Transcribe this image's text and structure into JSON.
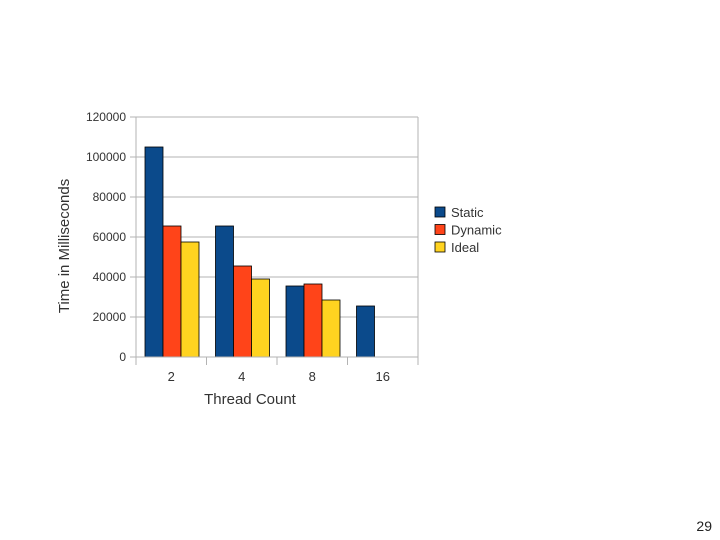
{
  "slide": {
    "page_number": "29"
  },
  "chart_data": {
    "type": "bar",
    "title": "",
    "xlabel": "Thread Count",
    "ylabel": "Time in Milliseconds",
    "categories": [
      "2",
      "4",
      "8",
      "16"
    ],
    "series": [
      {
        "name": "Static",
        "color": "#0b4a8b",
        "values": [
          105000,
          65500,
          35500,
          25500
        ]
      },
      {
        "name": "Dynamic",
        "color": "#ff4419",
        "values": [
          65500,
          45500,
          36500,
          null
        ]
      },
      {
        "name": "Ideal",
        "color": "#ffd320",
        "values": [
          57500,
          39000,
          28500,
          null
        ]
      }
    ],
    "ylim": [
      0,
      120000
    ],
    "yticks": [
      0,
      20000,
      40000,
      60000,
      80000,
      100000,
      120000
    ],
    "grid": true,
    "legend_position": "right"
  }
}
